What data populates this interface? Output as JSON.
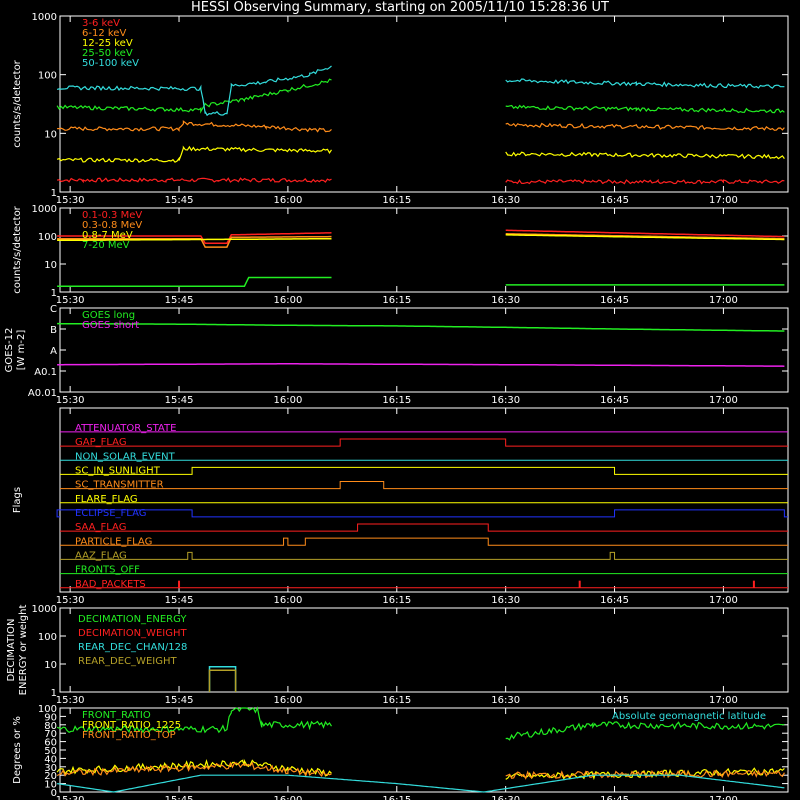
{
  "title": "HESSI Observing Summary, starting on 2005/11/10 15:28:36 UT",
  "colors": {
    "background": "#000000",
    "axes": "#ffffff",
    "red": "#ff2020",
    "orange": "#ff8c1a",
    "yellow": "#ffff00",
    "green": "#22ee22",
    "cyan": "#33dddd",
    "magenta": "#ee22ee",
    "blue": "#2233ff",
    "olive": "#b4a028",
    "darkorange": "#c86414"
  },
  "time_ticks": [
    "15:30",
    "15:45",
    "16:00",
    "16:15",
    "16:30",
    "16:45",
    "17:00"
  ],
  "chart_data": [
    {
      "id": "panel1",
      "type": "line",
      "ylabel": "counts/s/detector",
      "log": true,
      "yticks": [
        "1",
        "10",
        "100",
        "1000"
      ],
      "ylim": [
        1,
        1000
      ],
      "series": [
        {
          "name": "3-6 keV",
          "color": "red",
          "segments": [
            {
              "t": [
                15.47,
                15.53,
                15.55,
                15.72,
                15.84,
                15.97,
                16.1
              ],
              "y": [
                1.6,
                1.6,
                1.6,
                1.6,
                1.6,
                1.6,
                1.6
              ]
            },
            {
              "t": [
                16.5,
                16.7,
                16.85,
                17.0,
                17.14
              ],
              "y": [
                1.5,
                1.5,
                1.5,
                1.5,
                1.5
              ]
            }
          ]
        },
        {
          "name": "6-12 keV",
          "color": "orange",
          "segments": [
            {
              "t": [
                15.47,
                15.75,
                15.76,
                15.95,
                16.1
              ],
              "y": [
                12,
                12,
                15,
                13,
                11
              ]
            },
            {
              "t": [
                16.5,
                16.8,
                17.14
              ],
              "y": [
                14,
                13,
                12
              ]
            }
          ]
        },
        {
          "name": "12-25 keV",
          "color": "yellow",
          "segments": [
            {
              "t": [
                15.47,
                15.75,
                15.76,
                16.1
              ],
              "y": [
                3.5,
                3.5,
                5.5,
                5
              ]
            },
            {
              "t": [
                16.5,
                17.14
              ],
              "y": [
                4.5,
                4
              ]
            }
          ]
        },
        {
          "name": "25-50 keV",
          "color": "green",
          "segments": [
            {
              "t": [
                15.47,
                15.8,
                15.81,
                15.9,
                16.0,
                16.1
              ],
              "y": [
                28,
                25,
                30,
                38,
                55,
                80
              ]
            },
            {
              "t": [
                16.5,
                16.8,
                17.14
              ],
              "y": [
                28,
                26,
                24
              ]
            }
          ]
        },
        {
          "name": "50-100 keV",
          "color": "cyan",
          "segments": [
            {
              "t": [
                15.47,
                15.8,
                15.81,
                15.86,
                15.87,
                15.95,
                16.05,
                16.1
              ],
              "y": [
                60,
                58,
                22,
                22,
                65,
                75,
                100,
                140
              ]
            },
            {
              "t": [
                16.5,
                16.8,
                17.14
              ],
              "y": [
                80,
                70,
                62
              ]
            }
          ]
        }
      ]
    },
    {
      "id": "panel2",
      "type": "line",
      "ylabel": "counts/s/detector",
      "log": true,
      "yticks": [
        "1",
        "10",
        "100",
        "1000"
      ],
      "ylim": [
        1,
        1000
      ],
      "series": [
        {
          "name": "0.1-0.3 MeV",
          "color": "red",
          "segments": [
            {
              "t": [
                15.47,
                15.8,
                15.81,
                15.86,
                15.87,
                16.1
              ],
              "y": [
                100,
                100,
                55,
                55,
                110,
                130
              ]
            },
            {
              "t": [
                16.5,
                17.14
              ],
              "y": [
                160,
                95
              ]
            }
          ]
        },
        {
          "name": "0.3-0.8 MeV",
          "color": "orange",
          "segments": [
            {
              "t": [
                15.47,
                15.8,
                15.81,
                15.86,
                15.87,
                16.1
              ],
              "y": [
                80,
                80,
                40,
                40,
                90,
                95
              ]
            },
            {
              "t": [
                16.5,
                17.14
              ],
              "y": [
                120,
                80
              ]
            }
          ]
        },
        {
          "name": "0.8-7 MeV",
          "color": "yellow",
          "segments": [
            {
              "t": [
                15.47,
                16.1
              ],
              "y": [
                70,
                80
              ]
            },
            {
              "t": [
                16.5,
                17.14
              ],
              "y": [
                110,
                75
              ]
            }
          ]
        },
        {
          "name": "7-20 MeV",
          "color": "green",
          "segments": [
            {
              "t": [
                15.47,
                15.9,
                15.91,
                16.1
              ],
              "y": [
                1.6,
                1.6,
                3.3,
                3.3
              ]
            },
            {
              "t": [
                16.5,
                17.14
              ],
              "y": [
                1.8,
                1.8
              ]
            }
          ]
        }
      ]
    },
    {
      "id": "panel3",
      "type": "line",
      "ylabel": "GOES-12",
      "units": "[W m-2]",
      "log": true,
      "yticks": [
        "A0.01",
        "A0.1",
        "A",
        "B",
        "C"
      ],
      "ylim": [
        0.01,
        100
      ],
      "series": [
        {
          "name": "GOES long",
          "color": "green",
          "segments": [
            {
              "t": [
                15.47,
                15.75,
                16.0,
                16.25,
                16.5,
                16.75,
                17.14
              ],
              "y": [
                18,
                17,
                15,
                14,
                12,
                10,
                8
              ]
            }
          ]
        },
        {
          "name": "GOES short",
          "color": "magenta",
          "segments": [
            {
              "t": [
                15.47,
                16.0,
                16.5,
                17.14
              ],
              "y": [
                0.2,
                0.22,
                0.2,
                0.17
              ]
            }
          ]
        }
      ]
    },
    {
      "id": "panel4",
      "type": "line",
      "ylabel": "Flags",
      "flags": [
        {
          "name": "ATTENUATOR_STATE",
          "color": "magenta",
          "high": []
        },
        {
          "name": "GAP_FLAG",
          "color": "red",
          "high": [
            [
              16.12,
              16.5
            ]
          ]
        },
        {
          "name": "NON_SOLAR_EVENT",
          "color": "cyan",
          "high": []
        },
        {
          "name": "SC_IN_SUNLIGHT",
          "color": "yellow",
          "high": [
            [
              15.78,
              16.75
            ]
          ]
        },
        {
          "name": "SC_TRANSMITTER",
          "color": "orange",
          "high": [
            [
              16.12,
              16.22
            ]
          ]
        },
        {
          "name": "FLARE_FLAG",
          "color": "yellow",
          "high": []
        },
        {
          "name": "ECLIPSE_FLAG",
          "color": "blue",
          "high": [
            [
              15.47,
              15.78
            ],
            [
              16.75,
              17.14
            ]
          ]
        },
        {
          "name": "SAA_FLAG",
          "color": "red",
          "high": [
            [
              16.16,
              16.46
            ]
          ]
        },
        {
          "name": "PARTICLE_FLAG",
          "color": "orange",
          "high": [
            [
              15.99,
              16.0
            ],
            [
              16.04,
              16.46
            ]
          ]
        },
        {
          "name": "AAZ_FLAG",
          "color": "olive",
          "high": [
            [
              15.77,
              15.78
            ],
            [
              16.74,
              16.75
            ]
          ]
        },
        {
          "name": "FRONTS_OFF",
          "color": "green",
          "high": []
        },
        {
          "name": "BAD_PACKETS",
          "color": "red",
          "spikes": [
            15.75,
            16.67,
            17.07
          ]
        }
      ]
    },
    {
      "id": "panel5",
      "type": "line",
      "ylabel": "DECIMATION ENERGY or weight",
      "log": true,
      "yticks": [
        "1",
        "10",
        "100",
        "1000"
      ],
      "ylim": [
        1,
        1000
      ],
      "series": [
        {
          "name": "DECIMATION_ENERGY",
          "color": "green",
          "segments": []
        },
        {
          "name": "DECIMATION_WEIGHT",
          "color": "red",
          "segments": []
        },
        {
          "name": "REAR_DEC_CHAN/128",
          "color": "cyan",
          "segments": [
            {
              "t": [
                15.82,
                15.82,
                15.88,
                15.88
              ],
              "y": [
                1,
                8,
                8,
                1
              ]
            }
          ]
        },
        {
          "name": "REAR_DEC_WEIGHT",
          "color": "olive",
          "segments": [
            {
              "t": [
                15.82,
                15.82,
                15.88,
                15.88
              ],
              "y": [
                1,
                6,
                6,
                1
              ]
            }
          ]
        }
      ]
    },
    {
      "id": "panel6",
      "type": "line",
      "ylabel": "Degrees or %",
      "log": false,
      "yticks": [
        "0",
        "10",
        "20",
        "30",
        "40",
        "50",
        "60",
        "70",
        "80",
        "90",
        "100"
      ],
      "ylim": [
        0,
        100
      ],
      "right_label": "Absolute geomagnetic latitude",
      "series": [
        {
          "name": "FRONT_RATIO",
          "color": "green",
          "segments": [
            {
              "t": [
                15.47,
                15.86,
                15.87,
                15.93,
                15.94,
                16.1
              ],
              "y": [
                75,
                75,
                98,
                98,
                80,
                80
              ]
            },
            {
              "t": [
                16.5,
                16.7,
                17.14
              ],
              "y": [
                65,
                80,
                78
              ]
            }
          ]
        },
        {
          "name": "FRONT_RATIO_1225",
          "color": "yellow",
          "segments": [
            {
              "t": [
                15.47,
                15.9,
                16.0,
                16.1
              ],
              "y": [
                25,
                35,
                28,
                22
              ]
            },
            {
              "t": [
                16.5,
                17.14
              ],
              "y": [
                18,
                25
              ]
            }
          ]
        },
        {
          "name": "FRONT_RATIO_TOP",
          "color": "orange",
          "segments": [
            {
              "t": [
                15.47,
                15.9,
                16.0,
                16.1
              ],
              "y": [
                22,
                32,
                25,
                20
              ]
            },
            {
              "t": [
                16.5,
                17.14
              ],
              "y": [
                20,
                22
              ]
            }
          ]
        },
        {
          "name": "Absolute geomagnetic latitude",
          "color": "cyan",
          "segments": [
            {
              "t": [
                15.47,
                15.6,
                15.8,
                16.0,
                16.25,
                16.45,
                16.7,
                16.9,
                17.14
              ],
              "y": [
                10,
                0,
                20,
                20,
                10,
                0,
                20,
                20,
                5
              ]
            }
          ]
        }
      ]
    }
  ]
}
